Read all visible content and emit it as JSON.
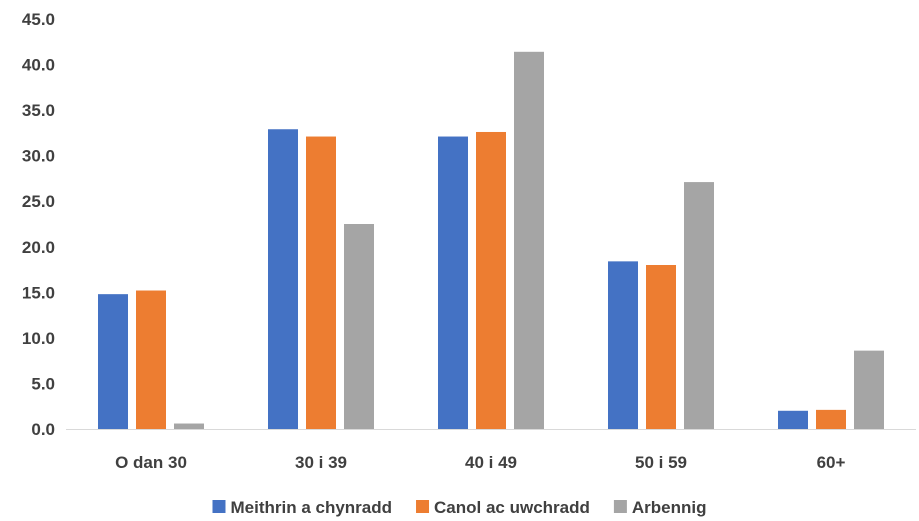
{
  "chart_data": {
    "type": "bar",
    "categories": [
      "O dan 30",
      "30 i 39",
      "40 i 49",
      "50 i 59",
      "60+"
    ],
    "series": [
      {
        "name": "Meithrin a chynradd",
        "color": "#4472C4",
        "values": [
          14.8,
          32.9,
          32.1,
          18.4,
          2.0
        ]
      },
      {
        "name": "Canol ac uwchradd",
        "color": "#ED7D31",
        "values": [
          15.2,
          32.1,
          32.6,
          18.0,
          2.1
        ]
      },
      {
        "name": "Arbennig",
        "color": "#A5A5A5",
        "values": [
          0.6,
          22.5,
          41.4,
          27.1,
          8.6
        ]
      }
    ],
    "yticks": [
      "0.0",
      "5.0",
      "10.0",
      "15.0",
      "20.0",
      "25.0",
      "30.0",
      "35.0",
      "40.0",
      "45.0"
    ],
    "ylim": [
      0,
      45
    ],
    "grid": false,
    "legend_position": "bottom"
  }
}
